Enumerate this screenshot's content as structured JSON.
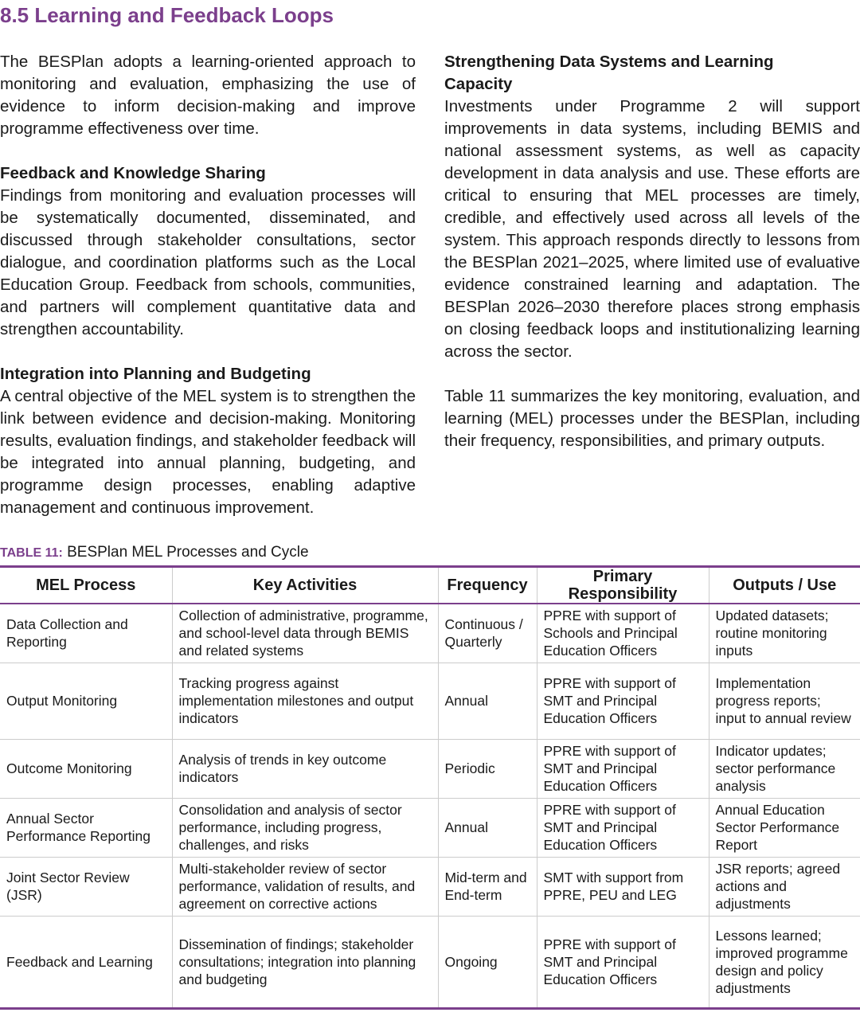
{
  "header": {
    "title": "8.5 Learning and Feedback Loops"
  },
  "left_column": {
    "intro": "The BESPlan adopts a learning-oriented approach to monitoring and evaluation, emphasizing the use of evidence to inform decision-making and improve programme effectiveness over time.",
    "sections": [
      {
        "heading": "Feedback and Knowledge Sharing",
        "text": "Findings from monitoring and evaluation processes will be systematically documented, disseminated, and discussed through stakeholder consultations, sector dialogue, and coordination platforms such as the Local Education Group. Feedback from schools, communities, and partners will complement quantitative data and strengthen accountability."
      },
      {
        "heading": "Integration into Planning and Budgeting",
        "text": "A central objective of the MEL system is to strengthen the link between evidence and decision-making. Monitoring results, evaluation findings, and stakeholder feedback will be integrated into annual planning, budgeting, and programme design processes, enabling adaptive management and continuous improvement."
      }
    ]
  },
  "right_column": {
    "heading": "Strengthening Data Systems and Learning Capacity",
    "text": "Investments under Programme 2 will support improvements in data systems, including BEMIS and national assessment systems, as well as capacity development in data analysis and use. These efforts are critical to ensuring that MEL processes are timely, credible, and effectively used across all levels of the system. This approach responds directly to lessons from the BESPlan 2021–2025, where limited use of evaluative evidence constrained learning and adaptation. The BESPlan 2026–2030 therefore places strong emphasis on closing feedback loops and institutionalizing learning across the sector.",
    "table_intro": "Table 11 summarizes the key monitoring, evaluation, and learning (MEL) processes under the BESPlan, including their frequency, responsibilities, and primary outputs."
  },
  "table": {
    "label": "TABLE 11:",
    "title": "BESPlan MEL Processes and Cycle",
    "columns": [
      "MEL Process",
      "Key Activities",
      "Frequency",
      "Primary Responsibility",
      "Outputs / Use"
    ],
    "rows": [
      [
        "Data Collection and Reporting",
        "Collection of administrative, programme, and school-level data through BEMIS and related systems",
        "Continuous / Quarterly",
        "PPRE with support of Schools and Principal Education Officers",
        "Updated datasets; routine monitoring inputs"
      ],
      [
        "Output Monitoring",
        "Tracking progress against implementation milestones and output indicators",
        "Annual",
        "PPRE with support of SMT and Principal Education Officers",
        "Implementation progress reports; input to annual review"
      ],
      [
        "Outcome Monitoring",
        "Analysis of trends in key outcome indicators",
        "Periodic",
        "PPRE with support of SMT and Principal Education Officers",
        "Indicator updates; sector performance analysis"
      ],
      [
        "Annual Sector Performance Reporting",
        "Consolidation and analysis of sector performance, including progress, challenges, and risks",
        "Annual",
        "PPRE with support of SMT and Principal Education Officers",
        "Annual Education Sector Performance Report"
      ],
      [
        "Joint Sector Review (JSR)",
        "Multi-stakeholder review of sector performance, validation of results, and agreement on corrective actions",
        "Mid-term and End-term",
        "SMT with support from PPRE, PEU and LEG",
        "JSR reports; agreed actions and adjustments"
      ],
      [
        "Feedback and Learning",
        "Dissemination of findings; stakeholder consultations; integration into planning and budgeting",
        "Ongoing",
        "PPRE with support of SMT and Principal Education Officers",
        "Lessons learned; improved programme design and policy adjustments"
      ]
    ]
  }
}
